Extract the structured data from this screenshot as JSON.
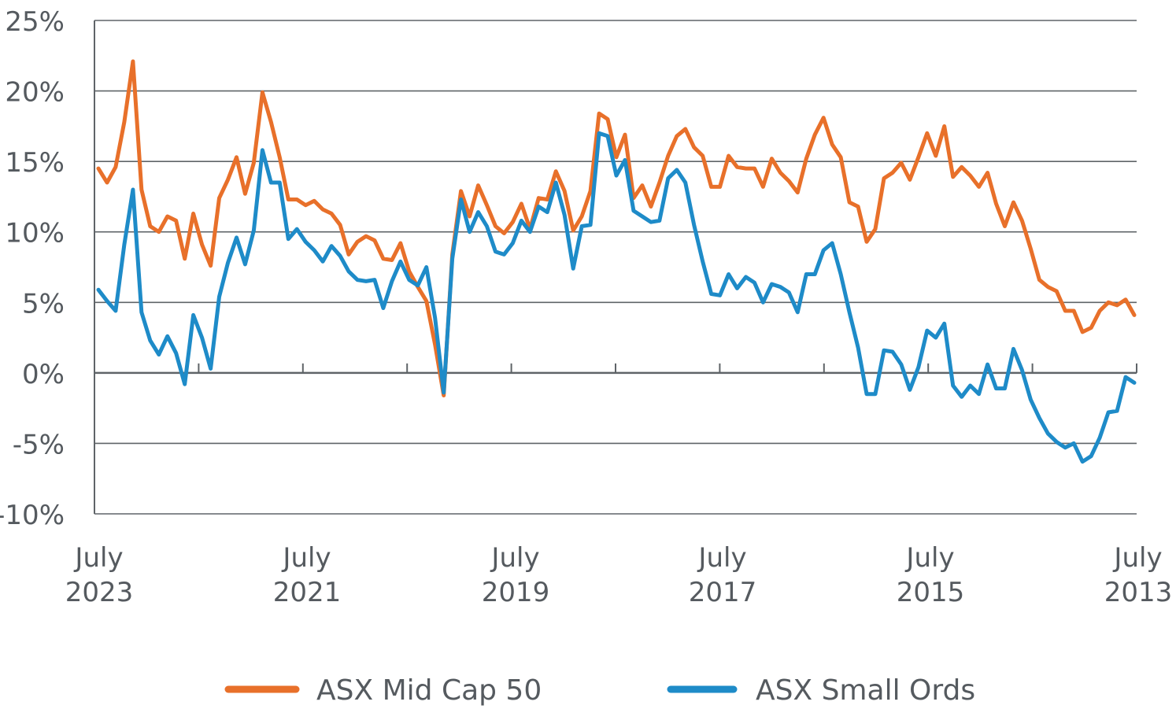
{
  "chart_data": {
    "type": "line",
    "title": "",
    "xlabel": "",
    "ylabel": "",
    "x_direction": "reversed",
    "grid": "horizontal",
    "legend_position": "bottom",
    "ylim": [
      -10,
      25
    ],
    "y_ticks": [
      25,
      20,
      15,
      10,
      5,
      0,
      -5,
      -10
    ],
    "y_tick_labels": [
      "25%",
      "20%",
      "15%",
      "10%",
      "5%",
      "0%",
      "-5%",
      "-10%"
    ],
    "x_ticks": [
      {
        "line1": "July",
        "line2": "2023"
      },
      {
        "line1": "July",
        "line2": "2021"
      },
      {
        "line1": "July",
        "line2": "2019"
      },
      {
        "line1": "July",
        "line2": "2017"
      },
      {
        "line1": "July",
        "line2": "2015"
      },
      {
        "line1": "July",
        "line2": "2013"
      }
    ],
    "x_range_months": [
      "2023-07",
      "2013-07"
    ],
    "series": [
      {
        "name": "ASX Mid Cap 50",
        "color": "#e8702a",
        "values": [
          14.5,
          13.5,
          14.6,
          17.8,
          22.1,
          13.0,
          10.4,
          10.0,
          11.1,
          10.8,
          8.1,
          11.3,
          9.1,
          7.6,
          12.4,
          13.7,
          15.3,
          12.7,
          14.9,
          19.9,
          17.8,
          15.3,
          12.3,
          12.3,
          11.9,
          12.2,
          11.6,
          11.3,
          10.5,
          8.4,
          9.3,
          9.7,
          9.4,
          8.1,
          8.0,
          9.2,
          7.2,
          6.1,
          5.1,
          2.0,
          -1.6,
          8.4,
          12.9,
          11.1,
          13.3,
          11.9,
          10.4,
          9.9,
          10.7,
          12.0,
          10.2,
          12.4,
          12.3,
          14.3,
          12.9,
          10.1,
          11.1,
          12.9,
          18.4,
          18.0,
          15.3,
          16.9,
          12.4,
          13.3,
          11.8,
          13.5,
          15.4,
          16.8,
          17.3,
          16.0,
          15.4,
          13.2,
          13.2,
          15.4,
          14.6,
          14.5,
          14.5,
          13.2,
          15.2,
          14.2,
          13.6,
          12.8,
          15.2,
          16.9,
          18.1,
          16.2,
          15.3,
          12.1,
          11.8,
          9.3,
          10.2,
          13.8,
          14.2,
          14.9,
          13.7,
          15.3,
          17.0,
          15.4,
          17.5,
          13.9,
          14.6,
          14.0,
          13.2,
          14.2,
          12.0,
          10.4,
          12.1,
          10.8,
          8.8,
          6.6,
          6.1,
          5.8,
          4.4,
          4.4,
          2.9,
          3.2,
          4.4,
          5.0,
          4.8,
          5.2,
          4.1
        ]
      },
      {
        "name": "ASX Small Ords",
        "color": "#1e8bc8",
        "values": [
          5.9,
          5.1,
          4.4,
          9.1,
          13.0,
          4.3,
          2.3,
          1.3,
          2.6,
          1.4,
          -0.8,
          4.1,
          2.5,
          0.3,
          5.4,
          7.8,
          9.6,
          7.7,
          10.1,
          15.8,
          13.5,
          13.5,
          9.5,
          10.2,
          9.3,
          8.7,
          7.9,
          9.0,
          8.3,
          7.2,
          6.6,
          6.5,
          6.6,
          4.6,
          6.5,
          7.9,
          6.6,
          6.2,
          7.5,
          3.9,
          -1.4,
          8.1,
          12.3,
          10.0,
          11.4,
          10.4,
          8.6,
          8.4,
          9.2,
          10.8,
          10.0,
          11.8,
          11.4,
          13.5,
          11.2,
          7.4,
          10.4,
          10.5,
          17.0,
          16.8,
          14.0,
          15.1,
          11.5,
          11.1,
          10.7,
          10.8,
          13.8,
          14.4,
          13.5,
          10.5,
          7.9,
          5.6,
          5.5,
          7.0,
          6.0,
          6.8,
          6.4,
          5.0,
          6.3,
          6.1,
          5.7,
          4.3,
          7.0,
          7.0,
          8.7,
          9.2,
          7.0,
          4.3,
          1.8,
          -1.5,
          -1.5,
          1.6,
          1.5,
          0.6,
          -1.2,
          0.4,
          3.0,
          2.5,
          3.5,
          -0.9,
          -1.7,
          -0.9,
          -1.5,
          0.6,
          -1.1,
          -1.1,
          1.7,
          0.2,
          -1.9,
          -3.2,
          -4.3,
          -4.9,
          -5.3,
          -5.0,
          -6.3,
          -5.9,
          -4.6,
          -2.8,
          -2.7,
          -0.3,
          -0.7
        ]
      }
    ]
  }
}
